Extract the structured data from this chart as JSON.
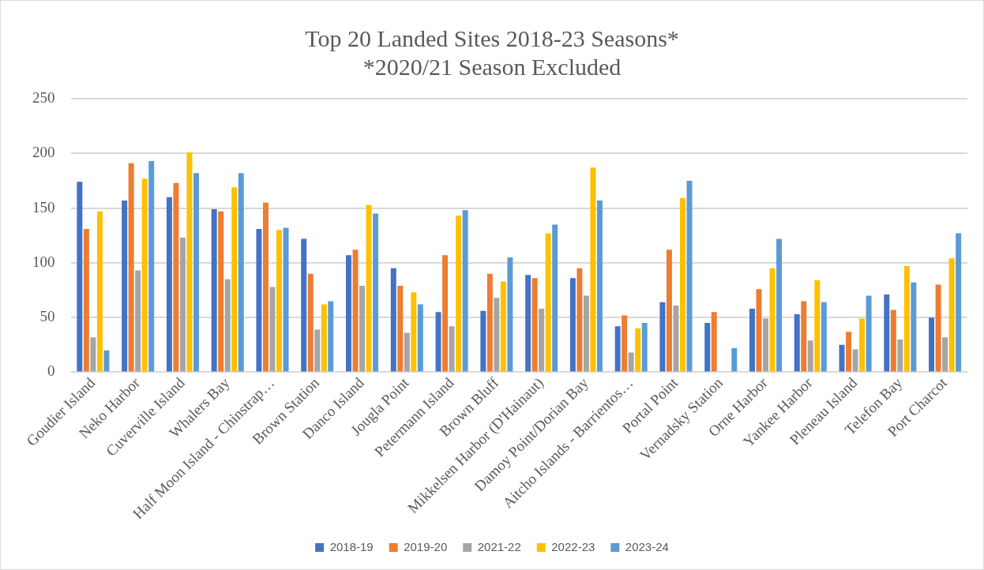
{
  "chart_data": {
    "type": "bar",
    "title": "Top 20 Landed Sites 2018-23 Seasons*",
    "subtitle": "*2020/21 Season Excluded",
    "categories": [
      "Goudier Island",
      "Neko Harbor",
      "Cuverville Island",
      "Whalers Bay",
      "Half Moon Island - Chinstrap…",
      "Brown Station",
      "Danco Island",
      "Jougla Point",
      "Petermann Island",
      "Brown Bluff",
      "Mikkelsen Harbor (D'Hainaut)",
      "Damoy Point/Dorian Bay",
      "Aitcho Islands - Barrientos…",
      "Portal Point",
      "Vernadsky Station",
      "Orne Harbor",
      "Yankee Harbor",
      "Pleneau Island",
      "Telefon Bay",
      "Port Charcot"
    ],
    "series": [
      {
        "name": "2018-19",
        "color": "#4472c4",
        "values": [
          174,
          157,
          160,
          149,
          131,
          122,
          107,
          95,
          55,
          56,
          89,
          86,
          42,
          64,
          45,
          58,
          53,
          25,
          71,
          50
        ]
      },
      {
        "name": "2019-20",
        "color": "#ed7d31",
        "values": [
          131,
          191,
          173,
          147,
          155,
          90,
          112,
          79,
          107,
          90,
          86,
          95,
          52,
          112,
          55,
          76,
          65,
          37,
          57,
          80
        ]
      },
      {
        "name": "2021-22",
        "color": "#a5a5a5",
        "values": [
          32,
          93,
          123,
          85,
          78,
          39,
          79,
          36,
          42,
          68,
          58,
          70,
          18,
          61,
          null,
          49,
          29,
          21,
          30,
          32
        ]
      },
      {
        "name": "2022-23",
        "color": "#ffc000",
        "values": [
          147,
          177,
          201,
          169,
          130,
          62,
          153,
          73,
          143,
          83,
          127,
          187,
          40,
          159,
          null,
          95,
          84,
          49,
          97,
          104
        ]
      },
      {
        "name": "2023-24",
        "color": "#5b9bd5",
        "values": [
          20,
          193,
          182,
          182,
          132,
          65,
          145,
          62,
          148,
          105,
          135,
          157,
          45,
          175,
          22,
          122,
          64,
          70,
          82,
          127
        ]
      }
    ],
    "ylim": [
      0,
      250
    ],
    "yticks": [
      0,
      50,
      100,
      150,
      200,
      250
    ],
    "grid": "y",
    "legend": "bottom"
  }
}
